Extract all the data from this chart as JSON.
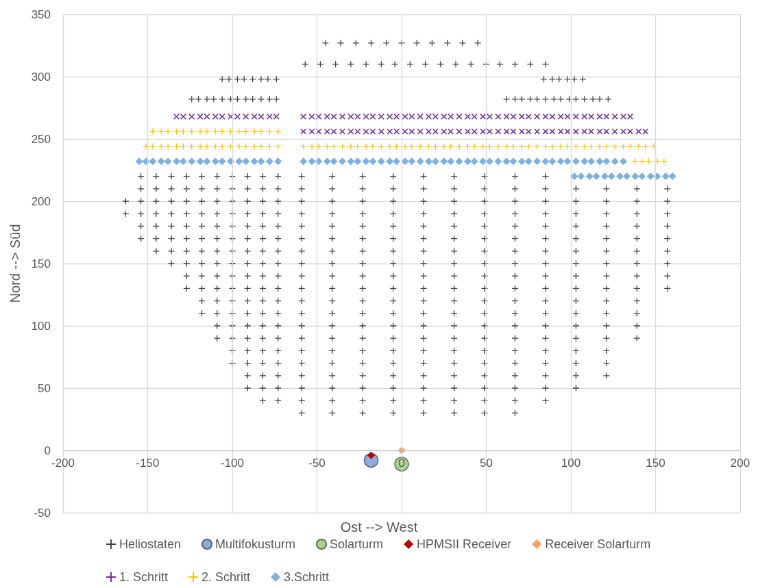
{
  "chart_data": {
    "type": "scatter",
    "xlabel": "Ost --> West",
    "ylabel": "Nord --> Süd",
    "xlim": [
      -200,
      200
    ],
    "xticks": [
      -200,
      -150,
      -100,
      -50,
      0,
      50,
      100,
      150,
      200
    ],
    "ylim": [
      -50,
      350
    ],
    "yticks": [
      -50,
      0,
      50,
      100,
      150,
      200,
      250,
      300,
      350
    ],
    "grid": true,
    "legend": "bottom",
    "series": [
      {
        "name": "Heliostaten",
        "color": "#404040",
        "marker": "plus",
        "x": [
          -59,
          -41,
          -23,
          -5,
          13,
          31,
          49,
          67,
          85,
          -59,
          -41,
          -23,
          -5,
          13,
          31,
          49,
          67,
          85,
          103,
          121,
          139,
          157,
          -59,
          -41,
          -23,
          -5,
          13,
          31,
          49,
          67,
          85,
          103,
          121,
          139,
          157,
          -59,
          -41,
          -23,
          -5,
          13,
          31,
          49,
          67,
          85,
          103,
          121,
          139,
          157,
          -59,
          -41,
          -23,
          -5,
          13,
          31,
          49,
          67,
          85,
          103,
          121,
          139,
          157,
          -59,
          -41,
          -23,
          -5,
          13,
          31,
          49,
          67,
          85,
          103,
          121,
          139,
          157,
          -59,
          -41,
          -23,
          -5,
          13,
          31,
          49,
          67,
          85,
          103,
          121,
          139,
          157,
          -59,
          -41,
          -23,
          -5,
          13,
          31,
          49,
          67,
          85,
          103,
          121,
          139,
          157,
          -59,
          -41,
          -23,
          -5,
          13,
          31,
          49,
          67,
          85,
          103,
          121,
          139,
          157,
          -59,
          -41,
          -23,
          -5,
          13,
          31,
          49,
          67,
          85,
          103,
          121,
          139,
          157,
          -59,
          -41,
          -23,
          -5,
          13,
          31,
          49,
          67,
          85,
          103,
          121,
          139,
          -59,
          -41,
          -23,
          -5,
          13,
          31,
          49,
          67,
          85,
          103,
          121,
          139,
          -59,
          -41,
          -23,
          -5,
          13,
          31,
          49,
          67,
          85,
          103,
          121,
          139,
          -59,
          -41,
          -23,
          -5,
          13,
          31,
          49,
          67,
          85,
          103,
          121,
          139,
          -59,
          -41,
          -23,
          -5,
          13,
          31,
          49,
          67,
          85,
          103,
          121,
          -59,
          -41,
          -23,
          -5,
          13,
          31,
          49,
          67,
          85,
          103,
          121,
          -59,
          -41,
          -23,
          -5,
          13,
          31,
          49,
          67,
          85,
          103,
          121,
          -59,
          -41,
          -23,
          -5,
          13,
          31,
          49,
          67,
          85,
          103,
          -59,
          -41,
          -23,
          -5,
          13,
          31,
          49,
          67,
          85,
          -59,
          -41,
          -23,
          -5,
          13,
          31,
          49,
          67,
          -73,
          -82,
          -91,
          -100,
          -109,
          -118,
          -127,
          -136,
          -145,
          -154,
          -73,
          -82,
          -91,
          -100,
          -109,
          -118,
          -127,
          -136,
          -145,
          -154,
          -73,
          -82,
          -91,
          -100,
          -109,
          -118,
          -127,
          -136,
          -145,
          -154,
          -163,
          -73,
          -82,
          -91,
          -100,
          -109,
          -118,
          -127,
          -136,
          -145,
          -154,
          -163,
          -73,
          -82,
          -91,
          -100,
          -109,
          -118,
          -127,
          -136,
          -145,
          -154,
          -73,
          -82,
          -91,
          -100,
          -109,
          -118,
          -127,
          -136,
          -145,
          -154,
          -73,
          -82,
          -91,
          -100,
          -109,
          -118,
          -127,
          -136,
          -145,
          -73,
          -82,
          -91,
          -100,
          -109,
          -118,
          -127,
          -136,
          -73,
          -82,
          -91,
          -100,
          -109,
          -118,
          -127,
          -73,
          -82,
          -91,
          -100,
          -109,
          -118,
          -127,
          -73,
          -82,
          -91,
          -100,
          -109,
          -118,
          -73,
          -82,
          -91,
          -100,
          -109,
          -118,
          -73,
          -82,
          -91,
          -100,
          -109,
          -73,
          -82,
          -91,
          -100,
          -109,
          -73,
          -82,
          -91,
          -100,
          -73,
          -82,
          -91,
          -100,
          -73,
          -82,
          -91,
          -73,
          -82,
          -91,
          -73,
          -82,
          -45,
          -36,
          -27,
          -18,
          -9,
          0,
          9,
          18,
          27,
          36,
          45,
          -57,
          -48,
          -39,
          -30,
          -21,
          -12,
          -4,
          5,
          14,
          23,
          32,
          41,
          50,
          58,
          67,
          76,
          85,
          -106,
          -102,
          -97,
          -93,
          -88,
          -83,
          -79,
          -74,
          84,
          89,
          93,
          98,
          102,
          107,
          -124,
          -120,
          -115,
          -111,
          -106,
          -101,
          -97,
          -92,
          -88,
          -83,
          -78,
          -74,
          62,
          67,
          71,
          76,
          80,
          85,
          90,
          94,
          99,
          103,
          108,
          113,
          117,
          122
        ],
        "values": [
          220,
          220,
          220,
          220,
          220,
          220,
          220,
          220,
          220,
          210,
          210,
          210,
          210,
          210,
          210,
          210,
          210,
          210,
          210,
          210,
          210,
          210,
          200,
          200,
          200,
          200,
          200,
          200,
          200,
          200,
          200,
          200,
          200,
          200,
          200,
          190,
          190,
          190,
          190,
          190,
          190,
          190,
          190,
          190,
          190,
          190,
          190,
          190,
          180,
          180,
          180,
          180,
          180,
          180,
          180,
          180,
          180,
          180,
          180,
          180,
          180,
          170,
          170,
          170,
          170,
          170,
          170,
          170,
          170,
          170,
          170,
          170,
          170,
          170,
          160,
          160,
          160,
          160,
          160,
          160,
          160,
          160,
          160,
          160,
          160,
          160,
          160,
          150,
          150,
          150,
          150,
          150,
          150,
          150,
          150,
          150,
          150,
          150,
          150,
          150,
          140,
          140,
          140,
          140,
          140,
          140,
          140,
          140,
          140,
          140,
          140,
          140,
          140,
          130,
          130,
          130,
          130,
          130,
          130,
          130,
          130,
          130,
          130,
          130,
          130,
          130,
          120,
          120,
          120,
          120,
          120,
          120,
          120,
          120,
          120,
          120,
          120,
          120,
          110,
          110,
          110,
          110,
          110,
          110,
          110,
          110,
          110,
          110,
          110,
          110,
          100,
          100,
          100,
          100,
          100,
          100,
          100,
          100,
          100,
          100,
          100,
          100,
          90,
          90,
          90,
          90,
          90,
          90,
          90,
          90,
          90,
          90,
          90,
          90,
          80,
          80,
          80,
          80,
          80,
          80,
          80,
          80,
          80,
          80,
          80,
          70,
          70,
          70,
          70,
          70,
          70,
          70,
          70,
          70,
          70,
          70,
          60,
          60,
          60,
          60,
          60,
          60,
          60,
          60,
          60,
          60,
          60,
          50,
          50,
          50,
          50,
          50,
          50,
          50,
          50,
          50,
          50,
          40,
          40,
          40,
          40,
          40,
          40,
          40,
          40,
          40,
          30,
          30,
          30,
          30,
          30,
          30,
          30,
          30,
          220,
          220,
          220,
          220,
          220,
          220,
          220,
          220,
          220,
          220,
          210,
          210,
          210,
          210,
          210,
          210,
          210,
          210,
          210,
          210,
          200,
          200,
          200,
          200,
          200,
          200,
          200,
          200,
          200,
          200,
          200,
          190,
          190,
          190,
          190,
          190,
          190,
          190,
          190,
          190,
          190,
          190,
          180,
          180,
          180,
          180,
          180,
          180,
          180,
          180,
          180,
          180,
          170,
          170,
          170,
          170,
          170,
          170,
          170,
          170,
          170,
          170,
          160,
          160,
          160,
          160,
          160,
          160,
          160,
          160,
          160,
          150,
          150,
          150,
          150,
          150,
          150,
          150,
          150,
          140,
          140,
          140,
          140,
          140,
          140,
          140,
          130,
          130,
          130,
          130,
          130,
          130,
          130,
          120,
          120,
          120,
          120,
          120,
          120,
          110,
          110,
          110,
          110,
          110,
          110,
          100,
          100,
          100,
          100,
          100,
          90,
          90,
          90,
          90,
          90,
          80,
          80,
          80,
          80,
          70,
          70,
          70,
          70,
          60,
          60,
          60,
          50,
          50,
          50,
          40,
          40,
          327,
          327,
          327,
          327,
          327,
          327,
          327,
          327,
          327,
          327,
          327,
          310,
          310,
          310,
          310,
          310,
          310,
          310,
          310,
          310,
          310,
          310,
          310,
          310,
          310,
          310,
          310,
          310,
          298,
          298,
          298,
          298,
          298,
          298,
          298,
          298,
          298,
          298,
          298,
          298,
          298,
          298,
          282,
          282,
          282,
          282,
          282,
          282,
          282,
          282,
          282,
          282,
          282,
          282,
          282,
          282,
          282,
          282,
          282,
          282,
          282,
          282,
          282,
          282,
          282,
          282,
          282,
          282
        ]
      },
      {
        "name": "Multifokusturm",
        "color": "#8faadc",
        "marker": "circle",
        "x": [
          -18
        ],
        "values": [
          -8
        ]
      },
      {
        "name": "Solarturm",
        "color": "#a9d18e",
        "marker": "circle",
        "x": [
          0
        ],
        "values": [
          -11
        ]
      },
      {
        "name": "HPMSII Receiver",
        "color": "#c00000",
        "marker": "diamond",
        "x": [
          -18
        ],
        "values": [
          -4
        ]
      },
      {
        "name": "Receiver Solarturm",
        "color": "#f4a060",
        "marker": "diamond",
        "x": [
          0
        ],
        "values": [
          0
        ]
      },
      {
        "name": "1. Schritt",
        "color": "#7030a0",
        "marker": "cross",
        "x": [
          -133,
          -129,
          -124,
          -119,
          -115,
          -110,
          -106,
          -101,
          -97,
          -92,
          -87,
          -83,
          -78,
          -74,
          -58,
          -53,
          -49,
          -44,
          -40,
          -35,
          -30,
          -26,
          -21,
          -17,
          -12,
          -7,
          -3,
          2,
          6,
          11,
          16,
          20,
          25,
          29,
          34,
          39,
          43,
          48,
          52,
          57,
          62,
          66,
          71,
          75,
          80,
          85,
          89,
          94,
          98,
          103,
          108,
          112,
          117,
          121,
          126,
          131,
          135,
          -58,
          -53,
          -49,
          -44,
          -40,
          -35,
          -30,
          -26,
          -21,
          -17,
          -12,
          -7,
          -3,
          2,
          6,
          11,
          16,
          20,
          25,
          29,
          34,
          39,
          43,
          48,
          52,
          57,
          62,
          66,
          71,
          75,
          80,
          85,
          89,
          94,
          98,
          103,
          108,
          112,
          117,
          121,
          126,
          131,
          135,
          140,
          144
        ],
        "values": [
          268,
          268,
          268,
          268,
          268,
          268,
          268,
          268,
          268,
          268,
          268,
          268,
          268,
          268,
          268,
          268,
          268,
          268,
          268,
          268,
          268,
          268,
          268,
          268,
          268,
          268,
          268,
          268,
          268,
          268,
          268,
          268,
          268,
          268,
          268,
          268,
          268,
          268,
          268,
          268,
          268,
          268,
          268,
          268,
          268,
          268,
          268,
          268,
          268,
          268,
          268,
          268,
          268,
          268,
          268,
          268,
          268,
          256,
          256,
          256,
          256,
          256,
          256,
          256,
          256,
          256,
          256,
          256,
          256,
          256,
          256,
          256,
          256,
          256,
          256,
          256,
          256,
          256,
          256,
          256,
          256,
          256,
          256,
          256,
          256,
          256,
          256,
          256,
          256,
          256,
          256,
          256,
          256,
          256,
          256,
          256,
          256,
          256,
          256,
          256,
          256,
          256
        ]
      },
      {
        "name": "2. Schritt",
        "color": "#ffc000",
        "marker": "plus",
        "x": [
          -147,
          -142,
          -138,
          -133,
          -129,
          -124,
          -119,
          -115,
          -110,
          -106,
          -101,
          -96,
          -92,
          -87,
          -83,
          -78,
          -73,
          -151,
          -147,
          -142,
          -138,
          -133,
          -129,
          -124,
          -119,
          -115,
          -110,
          -106,
          -101,
          -96,
          -92,
          -87,
          -83,
          -78,
          -73,
          -58,
          -53,
          -49,
          -44,
          -40,
          -35,
          -30,
          -26,
          -21,
          -17,
          -12,
          -7,
          -3,
          2,
          6,
          11,
          16,
          20,
          25,
          29,
          34,
          39,
          43,
          48,
          52,
          57,
          62,
          66,
          71,
          75,
          80,
          85,
          89,
          94,
          98,
          103,
          108,
          112,
          117,
          121,
          126,
          131,
          135,
          140,
          144,
          149,
          138,
          142,
          146,
          151,
          155
        ],
        "values": [
          256,
          256,
          256,
          256,
          256,
          256,
          256,
          256,
          256,
          256,
          256,
          256,
          256,
          256,
          256,
          256,
          256,
          244,
          244,
          244,
          244,
          244,
          244,
          244,
          244,
          244,
          244,
          244,
          244,
          244,
          244,
          244,
          244,
          244,
          244,
          244,
          244,
          244,
          244,
          244,
          244,
          244,
          244,
          244,
          244,
          244,
          244,
          244,
          244,
          244,
          244,
          244,
          244,
          244,
          244,
          244,
          244,
          244,
          244,
          244,
          244,
          244,
          244,
          244,
          244,
          244,
          244,
          244,
          244,
          244,
          244,
          244,
          244,
          244,
          244,
          244,
          244,
          244,
          244,
          244,
          244,
          232,
          232,
          232,
          232,
          232
        ]
      },
      {
        "name": "3.Schritt",
        "color": "#7fb0e0",
        "marker": "diamond",
        "x": [
          -155,
          -151,
          -147,
          -142,
          -138,
          -133,
          -129,
          -124,
          -119,
          -115,
          -110,
          -106,
          -101,
          -96,
          -92,
          -87,
          -83,
          -78,
          -73,
          -58,
          -53,
          -49,
          -44,
          -40,
          -35,
          -30,
          -26,
          -21,
          -17,
          -12,
          -7,
          -3,
          2,
          6,
          11,
          16,
          20,
          25,
          29,
          34,
          39,
          43,
          48,
          52,
          57,
          62,
          66,
          71,
          75,
          80,
          85,
          89,
          94,
          98,
          103,
          108,
          112,
          117,
          121,
          126,
          131,
          102,
          106,
          111,
          115,
          120,
          124,
          129,
          133,
          138,
          142,
          147,
          151,
          156,
          160
        ],
        "values": [
          232,
          232,
          232,
          232,
          232,
          232,
          232,
          232,
          232,
          232,
          232,
          232,
          232,
          232,
          232,
          232,
          232,
          232,
          232,
          232,
          232,
          232,
          232,
          232,
          232,
          232,
          232,
          232,
          232,
          232,
          232,
          232,
          232,
          232,
          232,
          232,
          232,
          232,
          232,
          232,
          232,
          232,
          232,
          232,
          232,
          232,
          232,
          232,
          232,
          232,
          232,
          232,
          232,
          232,
          232,
          232,
          232,
          232,
          232,
          232,
          232,
          220,
          220,
          220,
          220,
          220,
          220,
          220,
          220,
          220,
          220,
          220,
          220,
          220,
          220
        ]
      }
    ]
  }
}
